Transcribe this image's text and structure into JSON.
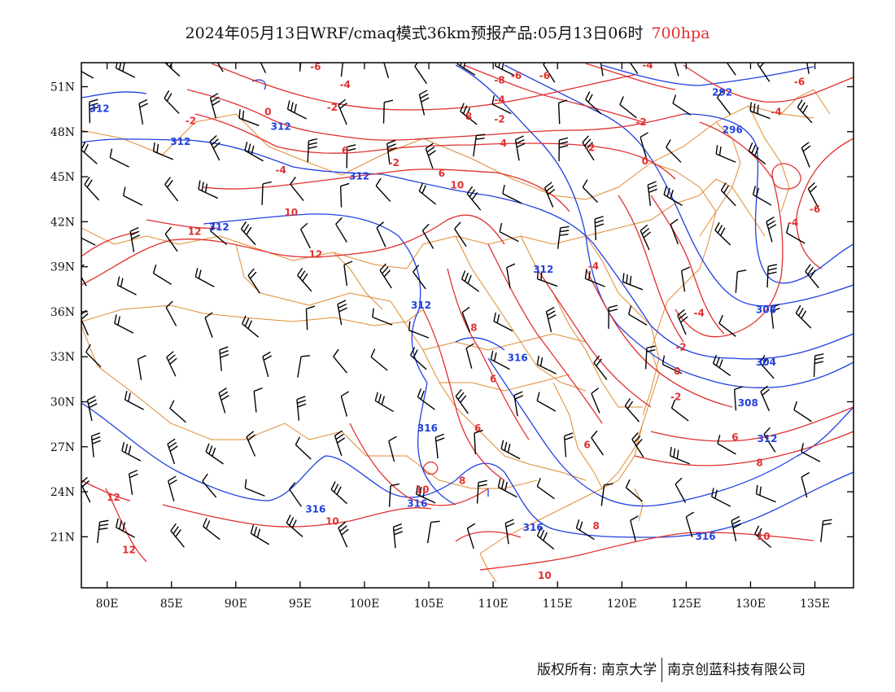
{
  "title": {
    "main": "2024年05月13日WRF/cmaq模式36km预报产品:05月13日06时",
    "level": "700hpa"
  },
  "colors": {
    "geopotential": "#2040e0",
    "temperature": "#e03030",
    "border": "#e08a30",
    "wind": "#000000",
    "level_text": "#e03030"
  },
  "axes": {
    "lon_labels": [
      "80E",
      "85E",
      "90E",
      "95E",
      "100E",
      "105E",
      "110E",
      "115E",
      "120E",
      "125E",
      "130E",
      "135E"
    ],
    "lat_labels": [
      "51N",
      "48N",
      "45N",
      "42N",
      "39N",
      "36N",
      "33N",
      "30N",
      "27N",
      "24N",
      "21N"
    ],
    "lon_range": [
      78,
      138
    ],
    "lat_range": [
      17.6,
      52.6
    ]
  },
  "contour_labels": {
    "temperature": [
      {
        "text": "-6",
        "lon": 96.2,
        "lat": 52.3
      },
      {
        "text": "-4",
        "lon": 98.5,
        "lat": 51.1
      },
      {
        "text": "-2",
        "lon": 86.5,
        "lat": 48.7
      },
      {
        "text": "0",
        "lon": 92.5,
        "lat": 49.3
      },
      {
        "text": "-2",
        "lon": 97.5,
        "lat": 49.6
      },
      {
        "text": "6",
        "lon": 98.5,
        "lat": 46.7
      },
      {
        "text": "-4",
        "lon": 93.5,
        "lat": 45.4
      },
      {
        "text": "-2",
        "lon": 102.3,
        "lat": 45.9
      },
      {
        "text": "6",
        "lon": 106.0,
        "lat": 45.2
      },
      {
        "text": "10",
        "lon": 107.2,
        "lat": 44.4
      },
      {
        "text": "10",
        "lon": 94.3,
        "lat": 42.6
      },
      {
        "text": "12",
        "lon": 86.8,
        "lat": 41.3
      },
      {
        "text": "12",
        "lon": 96.2,
        "lat": 39.8
      },
      {
        "text": "8",
        "lon": 108.1,
        "lat": 49.0
      },
      {
        "text": "-2",
        "lon": 110.5,
        "lat": 48.8
      },
      {
        "text": "4",
        "lon": 110.8,
        "lat": 47.2
      },
      {
        "text": "-4",
        "lon": 110.5,
        "lat": 50.1
      },
      {
        "text": "-6",
        "lon": 111.8,
        "lat": 51.7
      },
      {
        "text": "-8",
        "lon": 110.5,
        "lat": 51.4
      },
      {
        "text": "-6",
        "lon": 114.0,
        "lat": 51.7
      },
      {
        "text": "-4",
        "lon": 122.0,
        "lat": 52.4
      },
      {
        "text": "-2",
        "lon": 121.5,
        "lat": 48.6
      },
      {
        "text": "-2",
        "lon": 117.5,
        "lat": 46.9
      },
      {
        "text": "0",
        "lon": 121.8,
        "lat": 46.0
      },
      {
        "text": "-4",
        "lon": 132.0,
        "lat": 49.3
      },
      {
        "text": "-6",
        "lon": 133.8,
        "lat": 51.3
      },
      {
        "text": "-6",
        "lon": 135.0,
        "lat": 42.8
      },
      {
        "text": "-4",
        "lon": 133.3,
        "lat": 41.9
      },
      {
        "text": "-4",
        "lon": 126.0,
        "lat": 35.9
      },
      {
        "text": "-2",
        "lon": 124.6,
        "lat": 33.6
      },
      {
        "text": "0",
        "lon": 124.3,
        "lat": 32.0
      },
      {
        "text": "-2",
        "lon": 124.2,
        "lat": 30.3
      },
      {
        "text": "-4",
        "lon": 117.8,
        "lat": 39.0
      },
      {
        "text": "8",
        "lon": 108.5,
        "lat": 34.9
      },
      {
        "text": "6",
        "lon": 110.0,
        "lat": 31.5
      },
      {
        "text": "6",
        "lon": 108.8,
        "lat": 28.2
      },
      {
        "text": "8",
        "lon": 107.6,
        "lat": 24.7
      },
      {
        "text": "6",
        "lon": 117.3,
        "lat": 27.1
      },
      {
        "text": "6",
        "lon": 128.8,
        "lat": 27.6
      },
      {
        "text": "8",
        "lon": 130.7,
        "lat": 25.9
      },
      {
        "text": "10",
        "lon": 104.5,
        "lat": 24.1
      },
      {
        "text": "10",
        "lon": 97.5,
        "lat": 22.0
      },
      {
        "text": "8",
        "lon": 118.0,
        "lat": 21.7
      },
      {
        "text": "10",
        "lon": 114.0,
        "lat": 18.4
      },
      {
        "text": "10",
        "lon": 131.0,
        "lat": 21.0
      },
      {
        "text": "12",
        "lon": 80.5,
        "lat": 23.6
      },
      {
        "text": "12",
        "lon": 81.7,
        "lat": 20.1
      }
    ],
    "geopotential": [
      {
        "text": "312",
        "lon": 79.4,
        "lat": 49.5
      },
      {
        "text": "312",
        "lon": 93.5,
        "lat": 48.3
      },
      {
        "text": "312",
        "lon": 85.7,
        "lat": 47.3
      },
      {
        "text": "312",
        "lon": 99.6,
        "lat": 45.0
      },
      {
        "text": "312",
        "lon": 88.7,
        "lat": 41.6
      },
      {
        "text": "312",
        "lon": 113.9,
        "lat": 38.8
      },
      {
        "text": "312",
        "lon": 104.4,
        "lat": 36.4
      },
      {
        "text": "316",
        "lon": 111.9,
        "lat": 32.9
      },
      {
        "text": "316",
        "lon": 104.9,
        "lat": 28.2
      },
      {
        "text": "316",
        "lon": 96.2,
        "lat": 22.8
      },
      {
        "text": "316",
        "lon": 104.1,
        "lat": 23.2
      },
      {
        "text": "316",
        "lon": 113.1,
        "lat": 21.6
      },
      {
        "text": "316",
        "lon": 126.5,
        "lat": 21.0
      },
      {
        "text": "312",
        "lon": 131.3,
        "lat": 27.5
      },
      {
        "text": "308",
        "lon": 129.8,
        "lat": 29.9
      },
      {
        "text": "304",
        "lon": 131.2,
        "lat": 32.6
      },
      {
        "text": "308",
        "lon": 131.2,
        "lat": 36.1
      },
      {
        "text": "296",
        "lon": 128.6,
        "lat": 48.1
      },
      {
        "text": "292",
        "lon": 127.8,
        "lat": 50.6
      }
    ]
  },
  "footer": {
    "left": "版权所有: 南京大学",
    "right": "南京创蓝科技有限公司"
  }
}
